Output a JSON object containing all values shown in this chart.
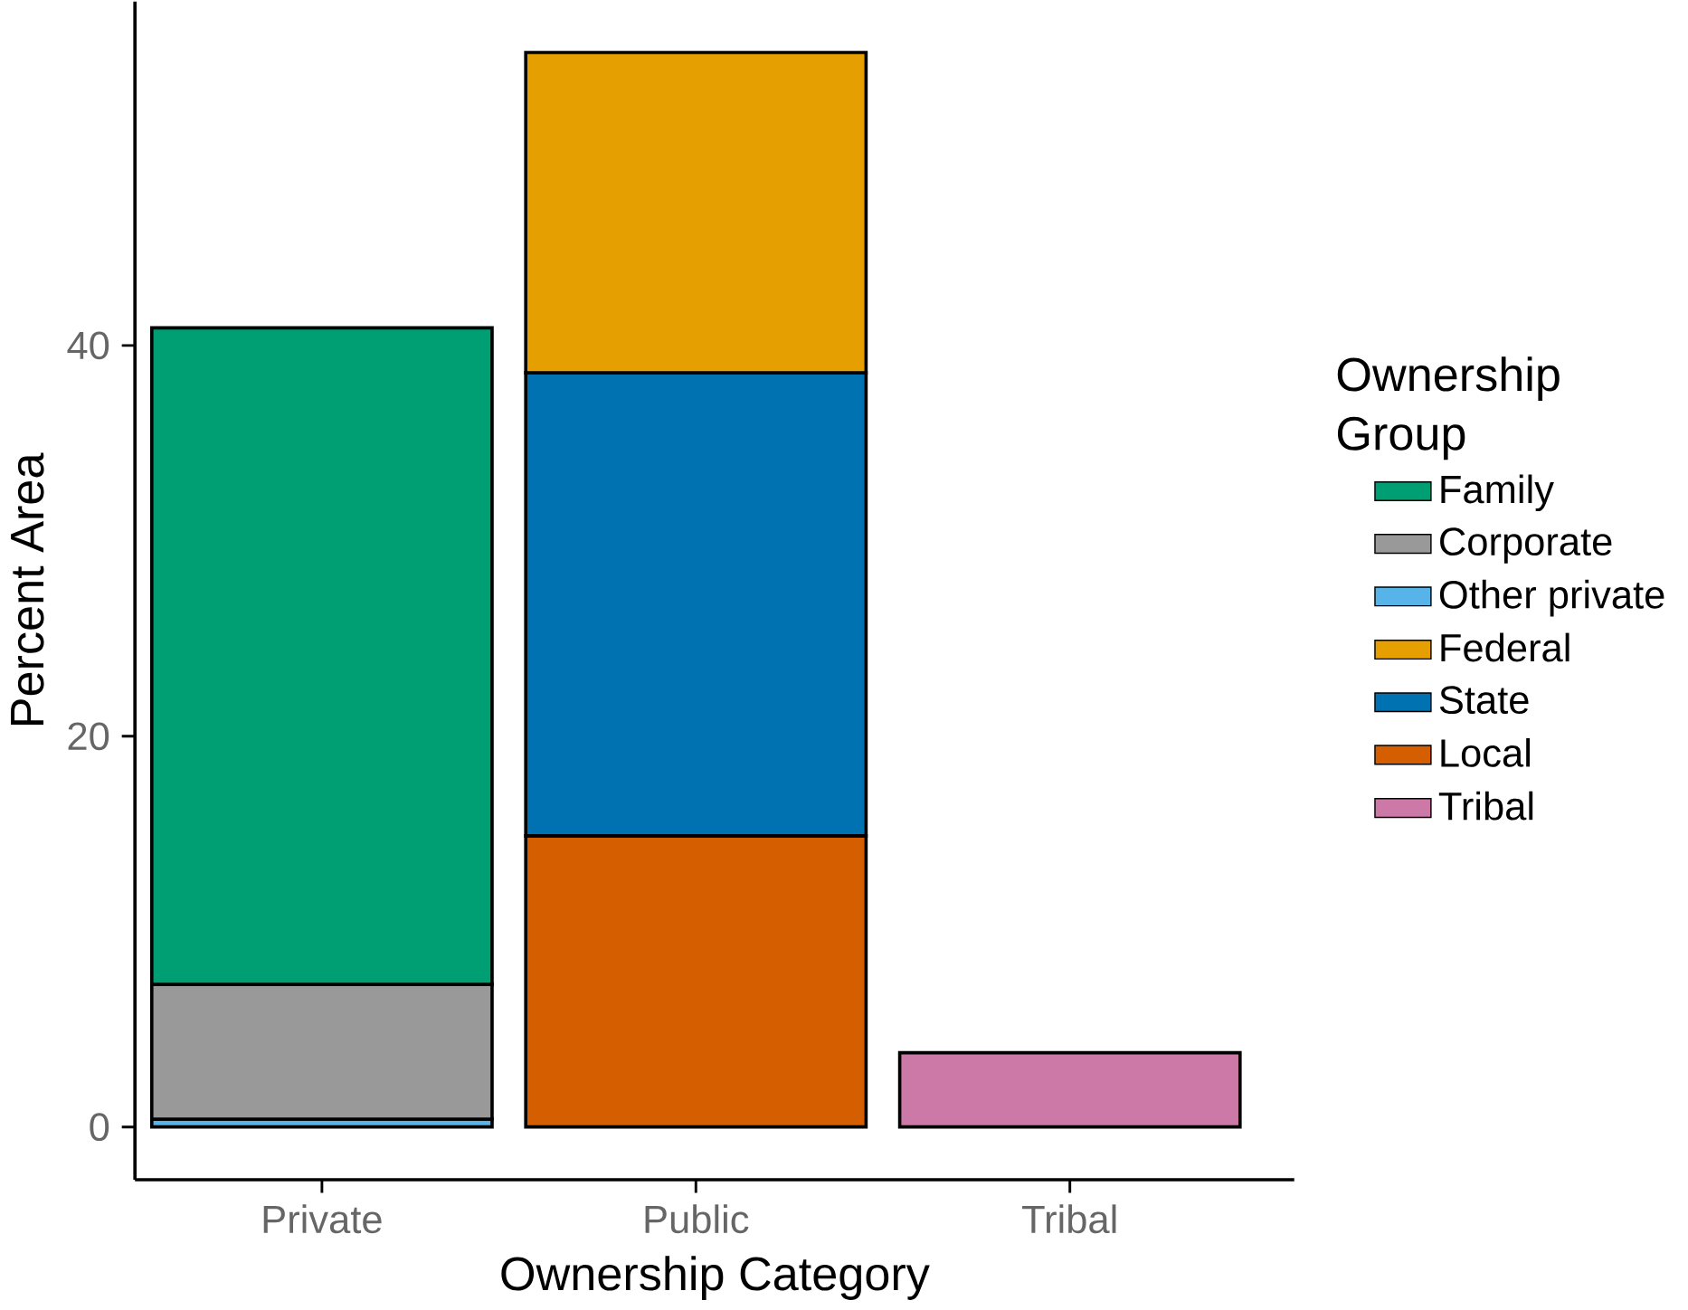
{
  "chart_data": {
    "type": "bar",
    "stacked": true,
    "xlabel": "Ownership Category",
    "ylabel": "Percent Area",
    "legend_title": "Ownership Group",
    "legend": "right",
    "categories": [
      "Private",
      "Public",
      "Tribal"
    ],
    "ylim": [
      -2.7,
      57.6
    ],
    "yticks": [
      0,
      20,
      40
    ],
    "grid": false,
    "series": [
      {
        "name": "Tribal",
        "color": "#cc79a7",
        "values": [
          null,
          null,
          3.8
        ]
      },
      {
        "name": "Local",
        "color": "#d55e00",
        "values": [
          null,
          14.9,
          null
        ]
      },
      {
        "name": "State",
        "color": "#0072b2",
        "values": [
          null,
          23.7,
          null
        ]
      },
      {
        "name": "Federal",
        "color": "#e69f00",
        "values": [
          null,
          16.4,
          null
        ]
      },
      {
        "name": "Other private",
        "color": "#56b4e9",
        "values": [
          0.4,
          null,
          null
        ]
      },
      {
        "name": "Corporate",
        "color": "#999999",
        "values": [
          6.9,
          null,
          null
        ]
      },
      {
        "name": "Family",
        "color": "#009e73",
        "values": [
          33.6,
          null,
          null
        ]
      }
    ]
  }
}
